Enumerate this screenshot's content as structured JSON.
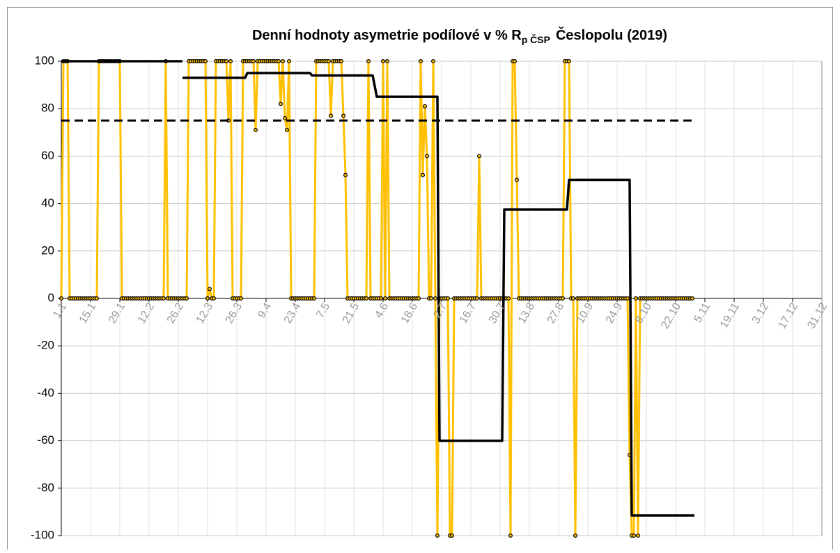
{
  "chart_data": {
    "type": "line",
    "title": "Denní hodnoty asymetrie podílové v % R",
    "title_subscript": "p ČSP",
    "title_suffix": "Česlopolu (2019)",
    "xlim": [
      0,
      364
    ],
    "ylim": [
      -100,
      100
    ],
    "yticks": [
      -100,
      -80,
      -60,
      -40,
      -20,
      0,
      20,
      40,
      60,
      80,
      100
    ],
    "xticks": [
      {
        "value": 0,
        "label": "1.1"
      },
      {
        "value": 14,
        "label": "15.1"
      },
      {
        "value": 28,
        "label": "29.1"
      },
      {
        "value": 42,
        "label": "12.2"
      },
      {
        "value": 56,
        "label": "26.2"
      },
      {
        "value": 70,
        "label": "12.3"
      },
      {
        "value": 84,
        "label": "26.3"
      },
      {
        "value": 98,
        "label": "9.4"
      },
      {
        "value": 112,
        "label": "23.4"
      },
      {
        "value": 126,
        "label": "7.5"
      },
      {
        "value": 140,
        "label": "21.5"
      },
      {
        "value": 154,
        "label": "4.6"
      },
      {
        "value": 168,
        "label": "18.6"
      },
      {
        "value": 182,
        "label": "2.7"
      },
      {
        "value": 196,
        "label": "16.7"
      },
      {
        "value": 210,
        "label": "30.7"
      },
      {
        "value": 224,
        "label": "13.8"
      },
      {
        "value": 238,
        "label": "27.8"
      },
      {
        "value": 252,
        "label": "10.9"
      },
      {
        "value": 266,
        "label": "24.9"
      },
      {
        "value": 280,
        "label": "8.10"
      },
      {
        "value": 294,
        "label": "22.10"
      },
      {
        "value": 308,
        "label": "5.11"
      },
      {
        "value": 322,
        "label": "19.11"
      },
      {
        "value": 336,
        "label": "3.12"
      },
      {
        "value": 350,
        "label": "17.12"
      },
      {
        "value": 364,
        "label": "31.12"
      }
    ],
    "grid": true,
    "series": [
      {
        "color": "#FFC000",
        "width": 3,
        "marker": true,
        "x": [
          0,
          1,
          2,
          3,
          4,
          5,
          6,
          7,
          8,
          9,
          10,
          11,
          12,
          13,
          14,
          15,
          16,
          17,
          18,
          19,
          20,
          21,
          22,
          23,
          24,
          25,
          26,
          27,
          28,
          29,
          30,
          31,
          32,
          33,
          34,
          35,
          36,
          37,
          38,
          39,
          40,
          41,
          42,
          43,
          44,
          45,
          46,
          47,
          48,
          49,
          50,
          51,
          52,
          53,
          54,
          55,
          56,
          57,
          58,
          59,
          60,
          61,
          62,
          63,
          64,
          65,
          66,
          67,
          68,
          69,
          70,
          71,
          72,
          73,
          74,
          75,
          76,
          77,
          78,
          79,
          80,
          81,
          82,
          83,
          84,
          85,
          86,
          87,
          88,
          89,
          90,
          91,
          92,
          93,
          94,
          95,
          96,
          97,
          98,
          99,
          100,
          101,
          102,
          103,
          104,
          105,
          106,
          107,
          108,
          109,
          110,
          111,
          112,
          113,
          114,
          115,
          116,
          117,
          118,
          119,
          120,
          121,
          122,
          123,
          124,
          125,
          126,
          127,
          128,
          129,
          130,
          131,
          132,
          133,
          134,
          135,
          136,
          137,
          138,
          139,
          140,
          141,
          142,
          143,
          144,
          145,
          146,
          147,
          148,
          149,
          150,
          151,
          152,
          153,
          154,
          155,
          156,
          157,
          158,
          159,
          160,
          161,
          162,
          163,
          164,
          165,
          166,
          167,
          168,
          169,
          170,
          171,
          172,
          173,
          174,
          175,
          176,
          177,
          178,
          179,
          180,
          181,
          182,
          183,
          184,
          185,
          186,
          187,
          188,
          189,
          190,
          191,
          192,
          193,
          194,
          195,
          196,
          197,
          198,
          199,
          200,
          201,
          202,
          203,
          204,
          205,
          206,
          207,
          208,
          209,
          210,
          211,
          212,
          213,
          214,
          215,
          216,
          217,
          218,
          219,
          220,
          221,
          222,
          223,
          224,
          225,
          226,
          227,
          228,
          229,
          230,
          231,
          232,
          233,
          234,
          235,
          236,
          237,
          238,
          239,
          240,
          241,
          242,
          243,
          244,
          245,
          246,
          247,
          248,
          249,
          250,
          251,
          252,
          253,
          254,
          255,
          256,
          257,
          258,
          259,
          260,
          261,
          262,
          263,
          264,
          265,
          266,
          267,
          268,
          269,
          270,
          271,
          272,
          273,
          274,
          275,
          276,
          277,
          278,
          279,
          280,
          281,
          282,
          283,
          284,
          285,
          286,
          287,
          288,
          289,
          290,
          291,
          292,
          293,
          294,
          295,
          296,
          297,
          298,
          299,
          300,
          301,
          302
        ],
        "values": [
          0,
          100,
          100,
          100,
          0,
          0,
          0,
          0,
          0,
          0,
          0,
          0,
          0,
          0,
          0,
          0,
          0,
          0,
          100,
          100,
          100,
          100,
          100,
          100,
          100,
          100,
          100,
          100,
          100,
          0,
          0,
          0,
          0,
          0,
          0,
          0,
          0,
          0,
          0,
          0,
          0,
          0,
          0,
          0,
          0,
          0,
          0,
          0,
          0,
          0,
          100,
          0,
          0,
          0,
          0,
          0,
          0,
          0,
          0,
          0,
          0,
          100,
          100,
          100,
          100,
          100,
          100,
          100,
          100,
          100,
          0,
          4,
          0,
          0,
          100,
          100,
          100,
          100,
          100,
          100,
          75,
          100,
          0,
          0,
          0,
          0,
          0,
          100,
          100,
          100,
          100,
          100,
          100,
          71,
          100,
          100,
          100,
          100,
          100,
          100,
          100,
          100,
          100,
          100,
          100,
          82,
          100,
          76,
          71,
          100,
          0,
          0,
          0,
          0,
          0,
          0,
          0,
          0,
          0,
          0,
          0,
          0,
          100,
          100,
          100,
          100,
          100,
          100,
          100,
          77,
          100,
          100,
          100,
          100,
          100,
          77,
          52,
          0,
          0,
          0,
          0,
          0,
          0,
          0,
          0,
          0,
          0,
          100,
          0,
          0,
          0,
          0,
          0,
          0,
          100,
          0,
          100,
          0,
          0,
          0,
          0,
          0,
          0,
          0,
          0,
          0,
          0,
          0,
          0,
          0,
          0,
          0,
          100,
          52,
          81,
          60,
          0,
          0,
          100,
          0,
          -100,
          0,
          0,
          0,
          0,
          0,
          -100,
          -100,
          0,
          0,
          0,
          0,
          0,
          0,
          0,
          0,
          0,
          0,
          0,
          0,
          60,
          0,
          0,
          0,
          0,
          0,
          0,
          0,
          0,
          0,
          0,
          0,
          0,
          0,
          0,
          -100,
          100,
          100,
          50,
          0,
          0,
          0,
          0,
          0,
          0,
          0,
          0,
          0,
          0,
          0,
          0,
          0,
          0,
          0,
          0,
          0,
          0,
          0,
          0,
          0,
          0,
          100,
          100,
          100,
          0,
          0,
          -100,
          0,
          0,
          0,
          0,
          0,
          0,
          0,
          0,
          0,
          0,
          0,
          0,
          0,
          0,
          0,
          0,
          0,
          0,
          0,
          0,
          0,
          0,
          0,
          0,
          0,
          -66,
          -100,
          -100,
          0,
          -100,
          0,
          0,
          0,
          0,
          0,
          0,
          0,
          0,
          0,
          0,
          0,
          0,
          0,
          0,
          0,
          0,
          0,
          0,
          0,
          0,
          0,
          0,
          0,
          0,
          0,
          0
        ]
      },
      {
        "color": "#000000",
        "width": 3.5,
        "x": [
          0,
          58,
          58,
          58,
          88,
          89,
          119,
          120,
          149,
          151,
          180,
          181,
          211,
          212,
          242,
          243,
          272,
          273,
          303
        ],
        "values": [
          100,
          100,
          null,
          93,
          93,
          95,
          95,
          94,
          94,
          85,
          85,
          -60,
          -60,
          37.5,
          37.5,
          50,
          50,
          -91.5,
          -91.5
        ]
      },
      {
        "color": "#000000",
        "width": 3,
        "dash": true,
        "x": [
          0,
          303
        ],
        "values": [
          75,
          75
        ]
      }
    ]
  }
}
